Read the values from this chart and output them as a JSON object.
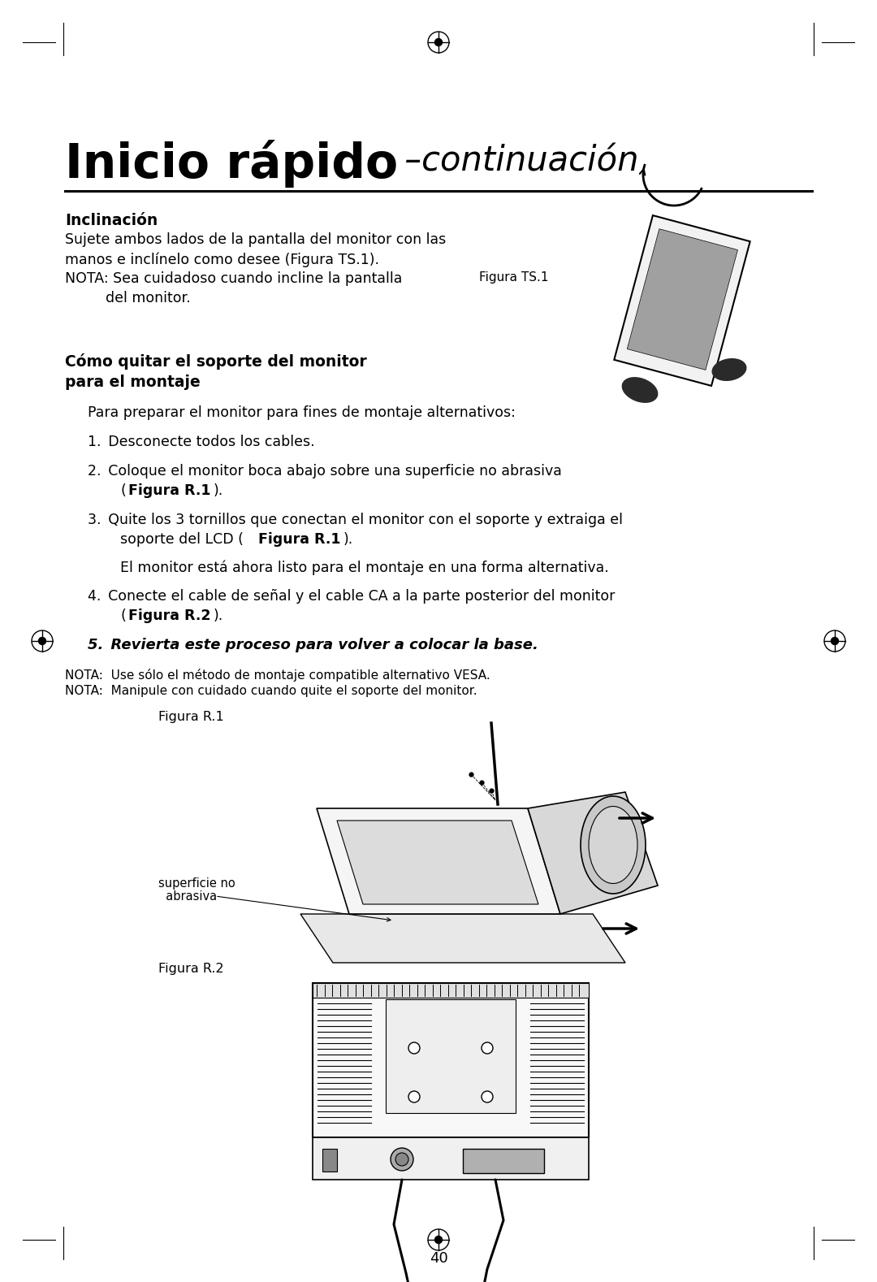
{
  "bg_color": "#ffffff",
  "title_bold": "Inicio rápido",
  "title_italic": " –continuación",
  "section1_heading": "Inclinación",
  "figura_ts1_label": "Figura TS.1",
  "section2_heading1": "Cómo quitar el soporte del monitor",
  "section2_heading2": "para el montaje",
  "section2_intro": "Para preparar el monitor para fines de montaje alternativos:",
  "item1": "1. Desconecte todos los cables.",
  "item2a": "2. Coloque el monitor boca abajo sobre una superficie no abrasiva",
  "item2b_pre": "    (",
  "item2b_bold": "Figura R.1",
  "item2b_post": ").",
  "item3a": "3. Quite los 3 tornillos que conectan el monitor con el soporte y extraiga el",
  "item3b_pre": "    soporte del LCD (",
  "item3b_bold": "Figura R.1",
  "item3b_post": ").",
  "item3c": "    El monitor está ahora listo para el montaje en una forma alternativa.",
  "item4a": "4. Conecte el cable de señal y el cable CA a la parte posterior del monitor",
  "item4b_pre": "    (",
  "item4b_bold": "Figura R.2",
  "item4b_post": ").",
  "item5": "5. Revierta este proceso para volver a colocar la base.",
  "nota1": "NOTA:  Use sólo el método de montaje compatible alternativo VESA.",
  "nota2": "NOTA:  Manipule con cuidado cuando quite el soporte del monitor.",
  "figura_r1_label": "Figura R.1",
  "superficie_label1": "superficie no",
  "superficie_label2": "  abrasiva",
  "figura_r2_label": "Figura R.2",
  "page_number": "40"
}
